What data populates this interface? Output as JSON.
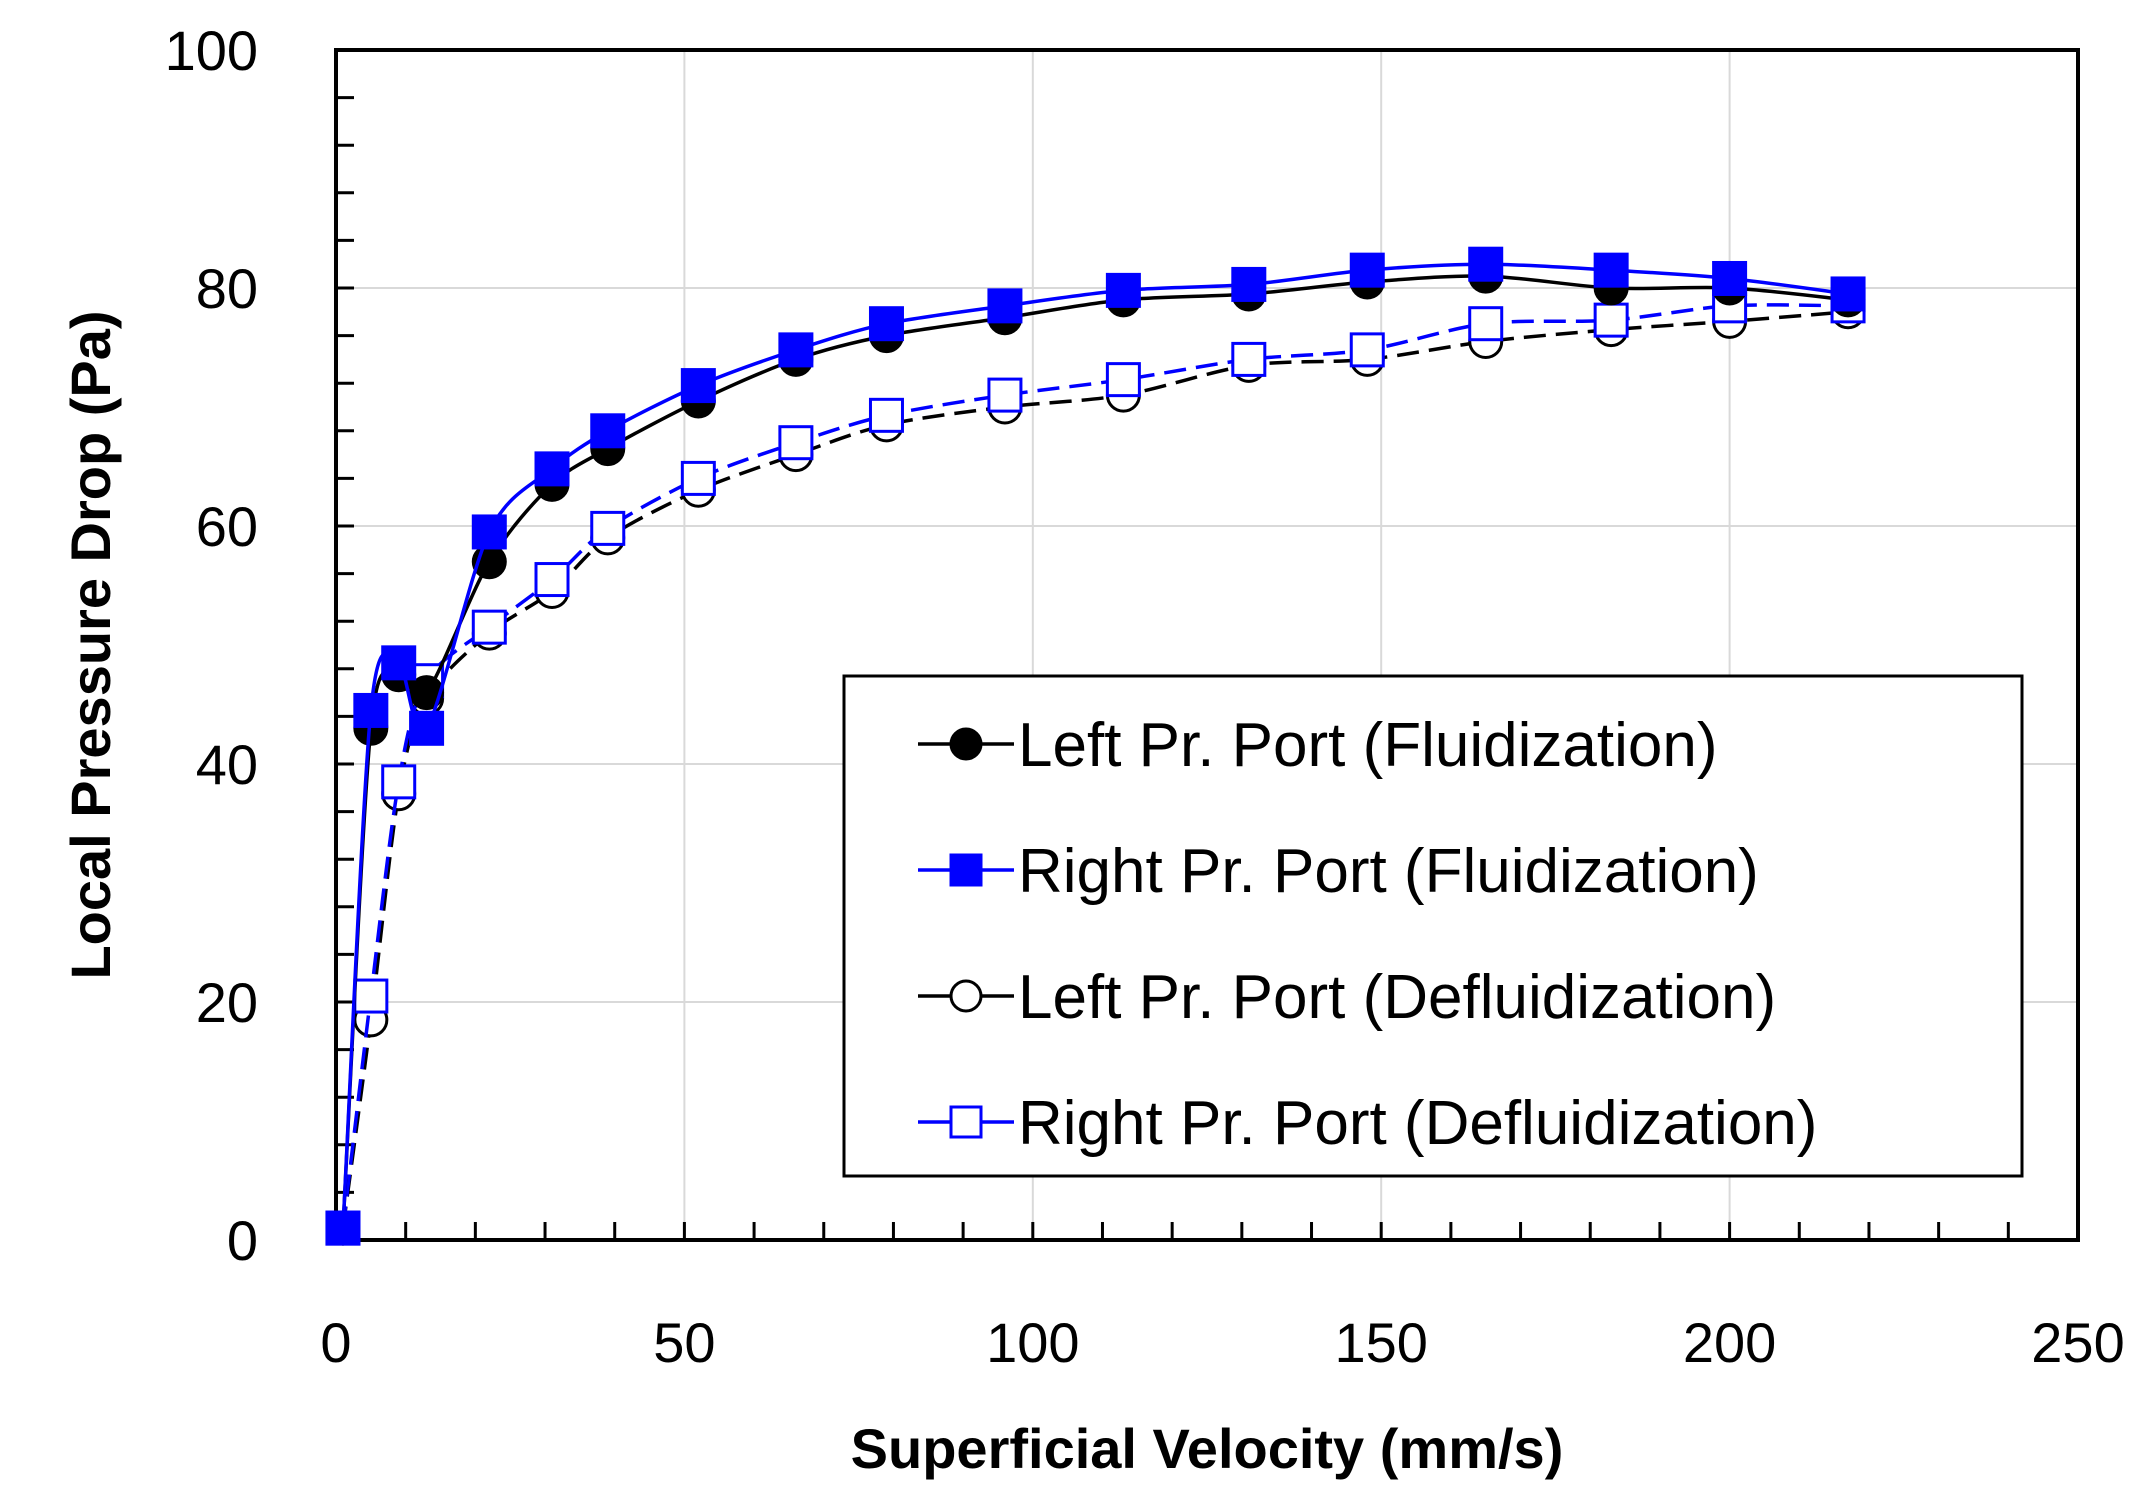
{
  "chart_data": {
    "type": "line",
    "title": "",
    "xlabel": "Superficial Velocity (mm/s)",
    "ylabel": "Local Pressure Drop (Pa)",
    "xlim": [
      0,
      250
    ],
    "ylim": [
      0,
      100
    ],
    "xticks": [
      0,
      50,
      100,
      150,
      200,
      250
    ],
    "yticks": [
      0,
      20,
      40,
      60,
      80,
      100
    ],
    "grid": true,
    "legend_position": "bottom-right",
    "series": [
      {
        "name": "Left Pr. Port (Fluidization)",
        "color": "#000000",
        "marker": "filled-circle",
        "dashed": false,
        "x": [
          1,
          5,
          9,
          13,
          22,
          31,
          39,
          52,
          66,
          79,
          96,
          113,
          131,
          148,
          165,
          183,
          200,
          217
        ],
        "y": [
          1,
          43,
          47.5,
          46,
          57,
          63.5,
          66.5,
          70.5,
          74,
          76,
          77.5,
          79,
          79.5,
          80.5,
          81,
          80,
          80,
          79
        ]
      },
      {
        "name": "Right Pr. Port (Fluidization)",
        "color": "#0000ff",
        "marker": "filled-square",
        "dashed": false,
        "x": [
          1,
          5,
          9,
          13,
          22,
          31,
          39,
          52,
          66,
          79,
          96,
          113,
          131,
          148,
          165,
          183,
          200,
          217
        ],
        "y": [
          1,
          44.5,
          48.5,
          43,
          59.5,
          64.8,
          68,
          71.8,
          74.8,
          77,
          78.5,
          79.8,
          80.3,
          81.5,
          82,
          81.5,
          80.8,
          79.5
        ]
      },
      {
        "name": "Left Pr. Port (Defluidization)",
        "color": "#000000",
        "marker": "open-circle",
        "dashed": true,
        "x": [
          1,
          5,
          9,
          13,
          22,
          31,
          39,
          52,
          66,
          79,
          96,
          113,
          131,
          148,
          165,
          183,
          200,
          217
        ],
        "y": [
          1,
          18.5,
          37.5,
          45.5,
          51,
          54.5,
          59,
          63,
          66,
          68.5,
          70,
          71,
          73.5,
          74,
          75.5,
          76.5,
          77.2,
          78
        ]
      },
      {
        "name": "Right Pr. Port (Defluidization)",
        "color": "#0000ff",
        "marker": "open-square",
        "dashed": true,
        "x": [
          1,
          5,
          9,
          13,
          22,
          31,
          39,
          52,
          66,
          79,
          96,
          113,
          131,
          148,
          165,
          183,
          200,
          217
        ],
        "y": [
          1,
          20.5,
          38.5,
          47,
          51.5,
          55.5,
          59.8,
          64,
          67,
          69.3,
          71,
          72.3,
          74,
          74.8,
          77,
          77.3,
          78.5,
          78.5
        ]
      }
    ]
  }
}
